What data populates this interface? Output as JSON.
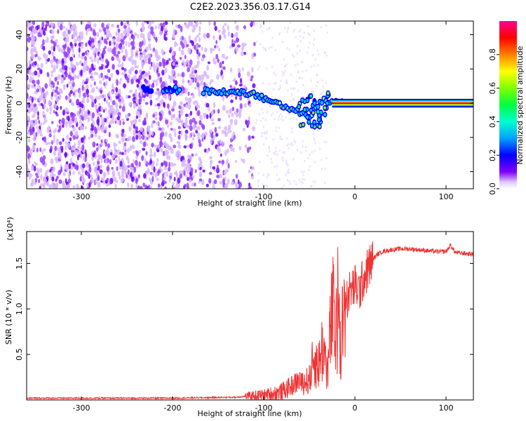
{
  "figure": {
    "title": "C2E2.2023.356.03.17.G14"
  },
  "chart_data": [
    {
      "type": "heatmap",
      "xlabel": "Height of straight line (km)",
      "ylabel": "Frequency (Hz)",
      "xlim": [
        -360,
        130
      ],
      "ylim": [
        -50,
        48
      ],
      "x_ticks": [
        -300,
        -200,
        -100,
        0,
        100
      ],
      "x_tick_labels": [
        "-300",
        "-200",
        "-100",
        "0",
        "100"
      ],
      "y_ticks": [
        -40,
        -20,
        0,
        20,
        40
      ],
      "y_tick_labels": [
        "-40",
        "-20",
        "0",
        "20",
        "40"
      ],
      "colorbar": {
        "label": "Normalized spectral amplitude",
        "range": [
          0,
          1
        ],
        "ticks": [
          0.0,
          0.2,
          0.4,
          0.6,
          0.8
        ],
        "tick_labels": [
          "0.0",
          "0.2",
          "0.4",
          "0.6",
          "0.8"
        ],
        "colormap": [
          "#ffffff",
          "#7f00ff",
          "#0000ff",
          "#00c8ff",
          "#00ff80",
          "#80ff00",
          "#ffff00",
          "#ff8000",
          "#ff0000",
          "#ff0080"
        ]
      },
      "ridge": {
        "description_points_x": [
          -230,
          -200,
          -160,
          -130,
          -110,
          -90,
          -70,
          -50,
          -35,
          -20,
          -10,
          0,
          50,
          130
        ],
        "description_points_y": [
          8,
          8,
          7,
          7,
          5,
          1,
          -3,
          -8,
          2,
          0,
          1,
          0,
          0,
          0
        ],
        "strong_signal_from_x": -25
      }
    },
    {
      "type": "line",
      "xlabel": "Height of straight line (km)",
      "ylabel": "SNR (10 * v/v)",
      "y_multiplier_label": "(x10⁴)",
      "xlim": [
        -360,
        130
      ],
      "ylim": [
        0,
        1.85
      ],
      "x_ticks": [
        -300,
        -200,
        -100,
        0,
        100
      ],
      "x_tick_labels": [
        "-300",
        "-200",
        "-100",
        "0",
        "100"
      ],
      "y_ticks": [
        0.5,
        1.0,
        1.5
      ],
      "y_tick_labels": [
        "0.5",
        "1.0",
        "1.5"
      ],
      "color": "#ee3333",
      "series": [
        {
          "x": [
            -360,
            -300,
            -200,
            -130,
            -110,
            -100,
            -90,
            -80,
            -70,
            -60,
            -50,
            -45,
            -40,
            -35,
            -30,
            -25,
            -20,
            -18,
            -15,
            -10,
            -5,
            0,
            5,
            10,
            15,
            20,
            25,
            30,
            40,
            50,
            60,
            70,
            80,
            90,
            100,
            105,
            110,
            120,
            130
          ],
          "y": [
            0.02,
            0.02,
            0.02,
            0.03,
            0.05,
            0.05,
            0.07,
            0.09,
            0.15,
            0.22,
            0.3,
            0.6,
            0.5,
            0.8,
            0.4,
            1.3,
            0.95,
            1.6,
            1.0,
            1.1,
            1.2,
            1.25,
            1.2,
            1.35,
            1.45,
            1.55,
            1.6,
            1.63,
            1.65,
            1.66,
            1.66,
            1.65,
            1.64,
            1.63,
            1.63,
            1.7,
            1.62,
            1.61,
            1.6
          ]
        }
      ]
    }
  ]
}
